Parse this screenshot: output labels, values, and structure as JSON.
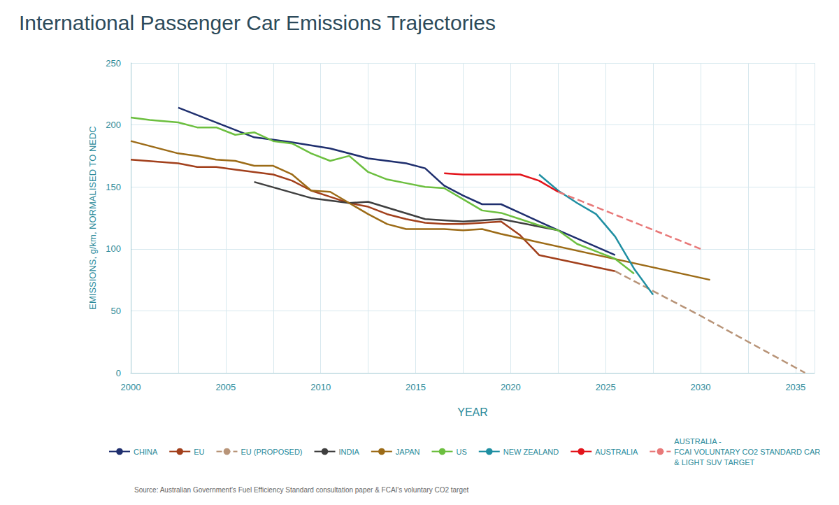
{
  "chart_data": {
    "type": "line",
    "title": "International Passenger Car Emissions Trajectories",
    "x_label": "YEAR",
    "y_label": "EMISSIONS, g/km, NORMALISED TO NEDC",
    "source": "Source: Australian Government's Fuel Efficiency Standard consultation paper & FCAI's voluntary CO2 target",
    "xlim": [
      2000,
      2036
    ],
    "xticks": [
      2000,
      2005,
      2010,
      2015,
      2020,
      2025,
      2030,
      2035
    ],
    "ylim": [
      0,
      250
    ],
    "yticks": [
      0,
      50,
      100,
      150,
      200,
      250
    ],
    "grid": true,
    "legend": "bottom",
    "series": [
      {
        "name": "CHINA",
        "color": "#1f2f6e",
        "line_style": "solid",
        "x": [
          2002.5,
          2006.5,
          2007.5,
          2008.5,
          2010.5,
          2012.5,
          2014.5,
          2015.5,
          2016.5,
          2017.5,
          2018.5,
          2019.5,
          2020.5,
          2021.5,
          2022.5,
          2025.5
        ],
        "values": [
          214,
          190,
          188,
          186,
          181,
          173,
          169,
          165,
          151,
          143,
          136,
          136,
          129,
          122,
          115,
          95
        ]
      },
      {
        "name": "EU",
        "color": "#a2401c",
        "line_style": "solid",
        "x": [
          2000,
          2002.5,
          2003.5,
          2004.5,
          2005.5,
          2006.5,
          2007.5,
          2008.5,
          2009.5,
          2010.5,
          2011.5,
          2012.5,
          2013.5,
          2014.5,
          2015.5,
          2016.5,
          2017.5,
          2018.5,
          2019.5,
          2020.5,
          2021.5,
          2025.5
        ],
        "values": [
          172,
          169,
          166,
          166,
          164,
          162,
          160,
          155,
          147,
          142,
          137,
          134,
          128,
          124,
          121,
          120,
          120,
          121,
          122,
          111,
          95,
          82
        ]
      },
      {
        "name": "EU (PROPOSED)",
        "color": "#b89478",
        "line_style": "dashed",
        "x": [
          2025.5,
          2027.5,
          2030,
          2035.5
        ],
        "values": [
          82,
          66,
          46,
          0
        ]
      },
      {
        "name": "INDIA",
        "color": "#3f3f3f",
        "line_style": "solid",
        "x": [
          2006.5,
          2009.5,
          2011.5,
          2012.5,
          2015.5,
          2017.5,
          2019.5,
          2022.5
        ],
        "values": [
          154,
          141,
          137,
          138,
          124,
          122,
          124,
          115
        ]
      },
      {
        "name": "JAPAN",
        "color": "#9c6b17",
        "line_style": "solid",
        "x": [
          2000,
          2002.5,
          2003.5,
          2004.5,
          2005.5,
          2006.5,
          2007.5,
          2008.5,
          2009.5,
          2010.5,
          2011.5,
          2012.5,
          2013.5,
          2014.5,
          2015.5,
          2016.5,
          2017.5,
          2018.5,
          2019.5,
          2030.5
        ],
        "values": [
          187,
          177,
          175,
          172,
          171,
          167,
          167,
          160,
          147,
          146,
          137,
          128,
          120,
          116,
          116,
          116,
          115,
          116,
          112,
          75
        ]
      },
      {
        "name": "US",
        "color": "#6cbf3f",
        "line_style": "solid",
        "x": [
          2000,
          2001,
          2002.5,
          2003.5,
          2004.5,
          2005.5,
          2006.5,
          2007.5,
          2008.5,
          2009.5,
          2010.5,
          2011.5,
          2012.5,
          2013.5,
          2014.5,
          2015.5,
          2016.5,
          2017.5,
          2018.5,
          2019.5,
          2020.5,
          2021.5,
          2022.5,
          2023.5,
          2024.5,
          2025.5,
          2026.5
        ],
        "values": [
          206,
          204,
          202,
          198,
          198,
          192,
          194,
          187,
          185,
          177,
          171,
          175,
          162,
          156,
          153,
          150,
          149,
          140,
          131,
          129,
          124,
          119,
          115,
          104,
          98,
          92,
          80
        ]
      },
      {
        "name": "NEW ZEALAND",
        "color": "#1f8fa2",
        "line_style": "solid",
        "x": [
          2021.5,
          2022.5,
          2023.5,
          2024.5,
          2025.5,
          2026.5,
          2027.5
        ],
        "values": [
          160,
          147,
          137,
          128,
          110,
          84,
          63
        ]
      },
      {
        "name": "AUSTRALIA",
        "color": "#e3141b",
        "line_style": "solid",
        "x": [
          2016.5,
          2017.5,
          2020.5,
          2021.5,
          2022.5
        ],
        "values": [
          161,
          160,
          160,
          155,
          146
        ]
      },
      {
        "name": "AUSTRALIA -\nFCAI VOLUNTARY CO2 STANDARD CAR\n& LIGHT SUV TARGET",
        "color": "#e87878",
        "line_style": "dashed",
        "x": [
          2022.5,
          2030
        ],
        "values": [
          146,
          100
        ]
      }
    ]
  }
}
